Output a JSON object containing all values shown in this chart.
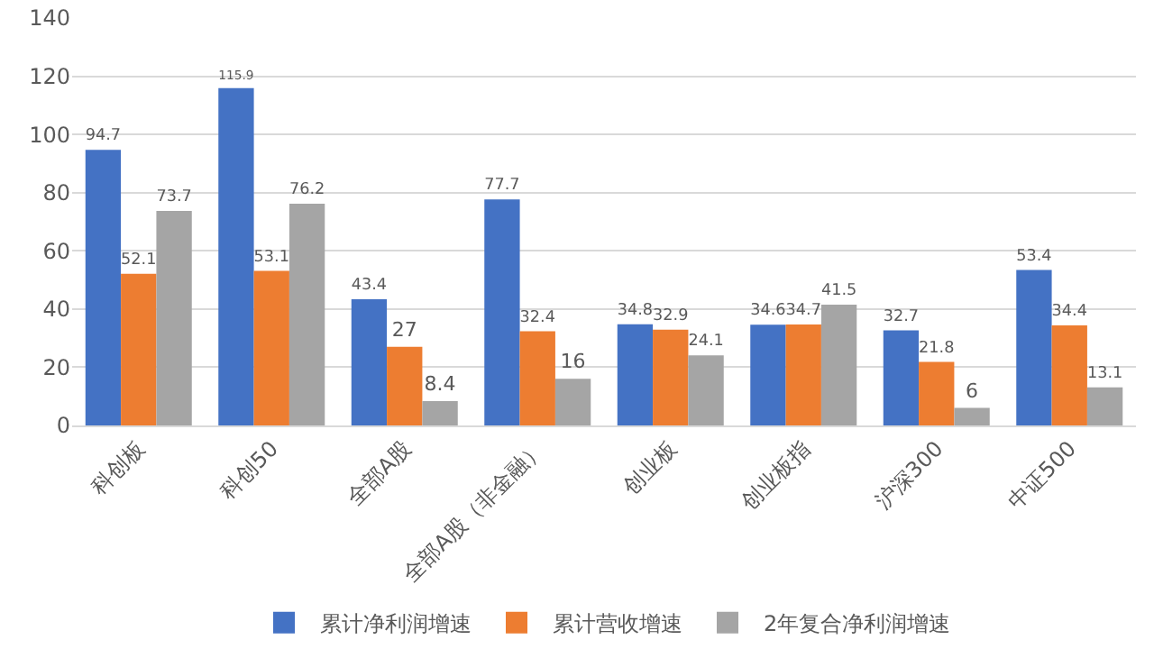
{
  "chart_data": {
    "type": "bar",
    "categories": [
      "科创板",
      "科创50",
      "全部A股",
      "全部A股（非金融）",
      "创业板",
      "创业板指",
      "沪深300",
      "中证500"
    ],
    "series": [
      {
        "name": "累计净利润增速",
        "color": "#4472c4",
        "values": [
          94.7,
          115.9,
          43.4,
          77.7,
          34.8,
          34.6,
          32.7,
          53.4
        ]
      },
      {
        "name": "累计营收增速",
        "color": "#ed7d31",
        "values": [
          52.1,
          53.1,
          27,
          32.4,
          32.9,
          34.7,
          21.8,
          34.4
        ]
      },
      {
        "name": "2年复合净利润增速",
        "color": "#a5a5a5",
        "values": [
          73.7,
          76.2,
          8.4,
          16,
          24.1,
          41.5,
          6,
          13.1
        ]
      }
    ],
    "ylim": [
      0,
      140
    ],
    "yticks": [
      0,
      20,
      40,
      60,
      80,
      100,
      120,
      140
    ],
    "grid": "y",
    "legend": "bottom",
    "data_labels": true
  }
}
